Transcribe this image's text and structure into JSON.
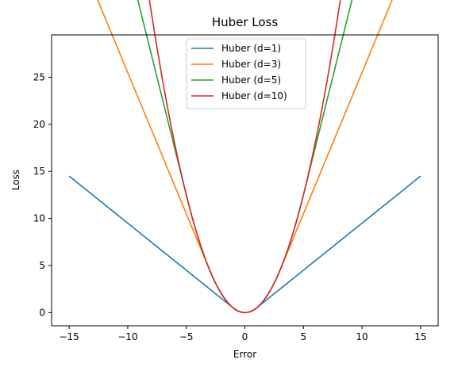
{
  "chart_data": {
    "type": "line",
    "title": "Huber Loss",
    "xlabel": "Error",
    "ylabel": "Loss",
    "xlim": [
      -16.5,
      16.5
    ],
    "ylim": [
      -1.4,
      29.5
    ],
    "x_ticks": [
      -15,
      -10,
      -5,
      0,
      5,
      10,
      15
    ],
    "y_ticks": [
      0,
      5,
      10,
      15,
      20,
      25
    ],
    "x_tick_labels": [
      "−15",
      "−10",
      "−5",
      "0",
      "5",
      "10",
      "15"
    ],
    "y_tick_labels": [
      "0",
      "5",
      "10",
      "15",
      "20",
      "25"
    ],
    "x_range": [
      -15,
      15
    ],
    "legend_position": "upper center",
    "grid": false,
    "series": [
      {
        "name": "Huber (d=1)",
        "delta": 1,
        "color": "#1f77b4"
      },
      {
        "name": "Huber (d=3)",
        "delta": 3,
        "color": "#ff7f0e"
      },
      {
        "name": "Huber (d=5)",
        "delta": 5,
        "color": "#2ca02c"
      },
      {
        "name": "Huber (d=10)",
        "delta": 10,
        "color": "#d62728"
      }
    ]
  }
}
